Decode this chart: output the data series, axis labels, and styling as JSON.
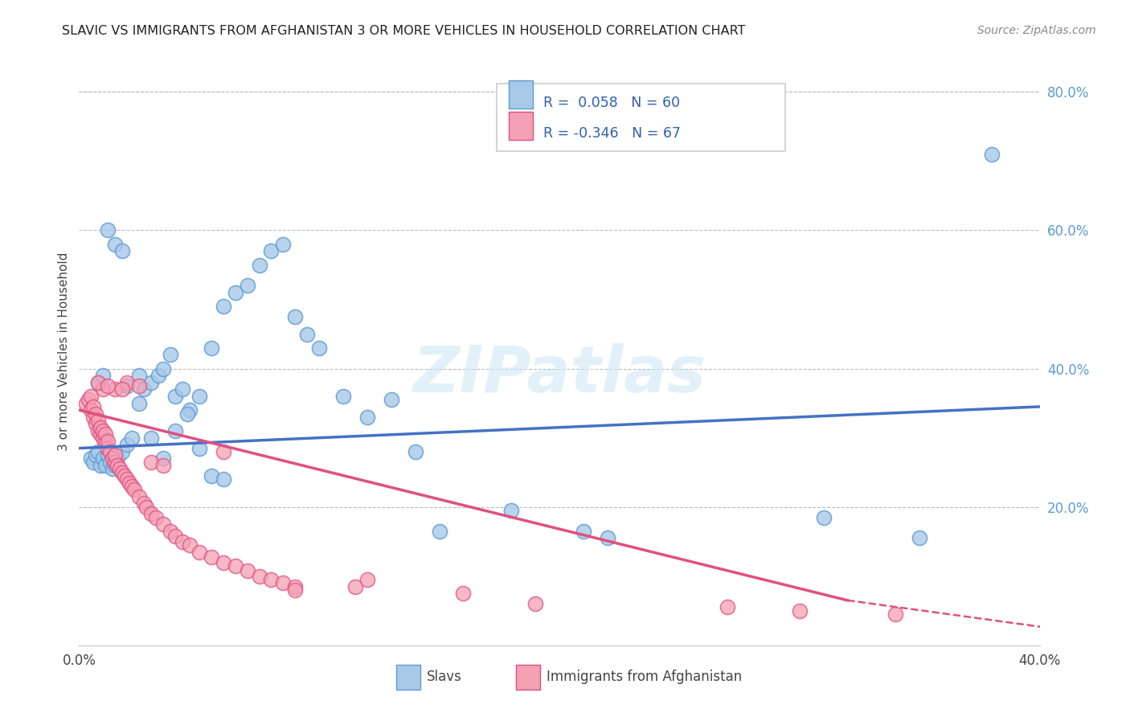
{
  "title": "SLAVIC VS IMMIGRANTS FROM AFGHANISTAN 3 OR MORE VEHICLES IN HOUSEHOLD CORRELATION CHART",
  "source": "Source: ZipAtlas.com",
  "ylabel": "3 or more Vehicles in Household",
  "xlim": [
    0.0,
    0.4
  ],
  "ylim": [
    0.0,
    0.85
  ],
  "xtick_positions": [
    0.0,
    0.05,
    0.1,
    0.15,
    0.2,
    0.25,
    0.3,
    0.35,
    0.4
  ],
  "xticklabels": [
    "0.0%",
    "",
    "",
    "",
    "",
    "",
    "",
    "",
    "40.0%"
  ],
  "ytick_positions": [
    0.2,
    0.4,
    0.6,
    0.8
  ],
  "yticklabels_right": [
    "20.0%",
    "40.0%",
    "60.0%",
    "80.0%"
  ],
  "color_blue_fill": "#a8c8e8",
  "color_blue_edge": "#5b9bd5",
  "color_pink_fill": "#f4a0b5",
  "color_pink_edge": "#e05080",
  "color_blue_line": "#4472c4",
  "color_pink_line": "#e05080",
  "slavs_x": [
    0.005,
    0.006,
    0.007,
    0.008,
    0.009,
    0.01,
    0.011,
    0.012,
    0.013,
    0.014,
    0.015,
    0.016,
    0.018,
    0.02,
    0.022,
    0.025,
    0.027,
    0.03,
    0.033,
    0.035,
    0.038,
    0.04,
    0.043,
    0.046,
    0.05,
    0.055,
    0.06,
    0.065,
    0.07,
    0.075,
    0.08,
    0.085,
    0.09,
    0.095,
    0.1,
    0.11,
    0.12,
    0.13,
    0.14,
    0.15,
    0.008,
    0.01,
    0.012,
    0.015,
    0.018,
    0.02,
    0.025,
    0.03,
    0.035,
    0.04,
    0.045,
    0.05,
    0.055,
    0.06,
    0.18,
    0.21,
    0.22,
    0.31,
    0.35,
    0.38
  ],
  "slavs_y": [
    0.27,
    0.265,
    0.275,
    0.28,
    0.26,
    0.27,
    0.26,
    0.275,
    0.265,
    0.255,
    0.26,
    0.27,
    0.28,
    0.29,
    0.3,
    0.35,
    0.37,
    0.38,
    0.39,
    0.4,
    0.42,
    0.36,
    0.37,
    0.34,
    0.36,
    0.43,
    0.49,
    0.51,
    0.52,
    0.55,
    0.57,
    0.58,
    0.475,
    0.45,
    0.43,
    0.36,
    0.33,
    0.355,
    0.28,
    0.165,
    0.38,
    0.39,
    0.6,
    0.58,
    0.57,
    0.375,
    0.39,
    0.3,
    0.27,
    0.31,
    0.335,
    0.285,
    0.245,
    0.24,
    0.195,
    0.165,
    0.155,
    0.185,
    0.155,
    0.71
  ],
  "afghan_x": [
    0.003,
    0.004,
    0.005,
    0.005,
    0.006,
    0.006,
    0.007,
    0.007,
    0.008,
    0.008,
    0.009,
    0.009,
    0.01,
    0.01,
    0.011,
    0.011,
    0.012,
    0.012,
    0.013,
    0.014,
    0.015,
    0.015,
    0.016,
    0.017,
    0.018,
    0.019,
    0.02,
    0.021,
    0.022,
    0.023,
    0.025,
    0.027,
    0.028,
    0.03,
    0.032,
    0.035,
    0.038,
    0.04,
    0.043,
    0.046,
    0.05,
    0.055,
    0.06,
    0.065,
    0.07,
    0.075,
    0.08,
    0.085,
    0.09,
    0.01,
    0.015,
    0.02,
    0.025,
    0.03,
    0.008,
    0.012,
    0.018,
    0.035,
    0.115,
    0.16,
    0.19,
    0.27,
    0.3,
    0.34,
    0.12,
    0.06,
    0.09
  ],
  "afghan_y": [
    0.35,
    0.355,
    0.34,
    0.36,
    0.33,
    0.345,
    0.32,
    0.335,
    0.31,
    0.325,
    0.305,
    0.315,
    0.3,
    0.31,
    0.295,
    0.305,
    0.285,
    0.295,
    0.28,
    0.27,
    0.265,
    0.275,
    0.26,
    0.255,
    0.25,
    0.245,
    0.24,
    0.235,
    0.23,
    0.225,
    0.215,
    0.205,
    0.2,
    0.19,
    0.185,
    0.175,
    0.165,
    0.158,
    0.15,
    0.145,
    0.135,
    0.128,
    0.12,
    0.115,
    0.108,
    0.1,
    0.095,
    0.09,
    0.085,
    0.37,
    0.37,
    0.38,
    0.375,
    0.265,
    0.38,
    0.375,
    0.37,
    0.26,
    0.085,
    0.075,
    0.06,
    0.055,
    0.05,
    0.045,
    0.095,
    0.28,
    0.08
  ],
  "slavs_regression": [
    0.0,
    0.4,
    0.285,
    0.345
  ],
  "afghan_regression_solid": [
    0.0,
    0.32,
    0.34,
    0.065
  ],
  "afghan_regression_dashed": [
    0.32,
    0.52,
    0.065,
    -0.03
  ]
}
